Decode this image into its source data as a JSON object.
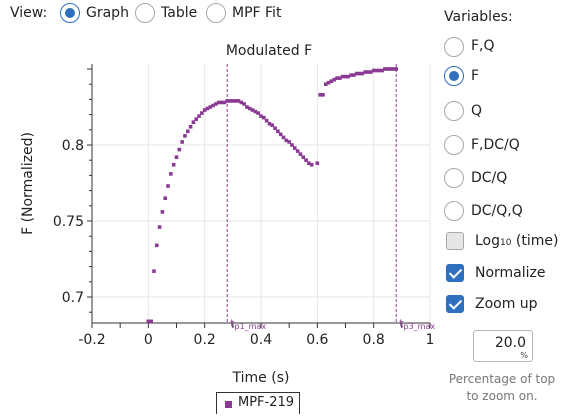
{
  "view": {
    "label": "View:",
    "options": [
      "Graph",
      "Table",
      "MPF Fit"
    ],
    "selected": "Graph"
  },
  "variables": {
    "label": "Variables:",
    "options": [
      "F,Q",
      "F",
      "Q",
      "F,DC/Q",
      "DC/Q",
      "DC/Q,Q"
    ],
    "selected": "F"
  },
  "checkboxes": {
    "log_time": {
      "prefix": "Log",
      "sub": "10",
      "suffix": " (time)",
      "checked": false
    },
    "normalize": {
      "label": "Normalize",
      "checked": true
    },
    "zoom_up": {
      "label": "Zoom up",
      "checked": true
    }
  },
  "zoom": {
    "value": "20.0",
    "unit": "%",
    "help": "Percentage of top to zoom on."
  },
  "colors": {
    "accent": "#2f6fc0",
    "series": "#8a3a94",
    "grid": "#e6e6e6"
  },
  "chart_data": {
    "type": "scatter",
    "title": "Modulated F",
    "xlabel": "Time (s)",
    "ylabel": "F (Normalized)",
    "xlim": [
      -0.2,
      1.0
    ],
    "ylim": [
      0.684,
      0.851
    ],
    "x_ticks": [
      "-0.2",
      "0",
      "0.2",
      "0.4",
      "0.6",
      "0.8",
      "1"
    ],
    "x_tick_values": [
      -0.2,
      0,
      0.2,
      0.4,
      0.6,
      0.8,
      1.0
    ],
    "y_ticks": [
      "0.7",
      "0.75",
      "0.8"
    ],
    "y_tick_values": [
      0.7,
      0.75,
      0.8
    ],
    "grid": true,
    "legend_position": "bottom-center",
    "annotations": [
      {
        "x": 0.28,
        "base": "t",
        "sub": "p1_max"
      },
      {
        "x": 0.88,
        "base": "t",
        "sub": "p3_max"
      }
    ],
    "series": [
      {
        "name": "MPF-219",
        "x": [
          0.0,
          0.005,
          0.01,
          0.02,
          0.03,
          0.04,
          0.05,
          0.06,
          0.07,
          0.08,
          0.09,
          0.1,
          0.11,
          0.12,
          0.13,
          0.14,
          0.15,
          0.16,
          0.17,
          0.18,
          0.19,
          0.2,
          0.21,
          0.22,
          0.23,
          0.24,
          0.25,
          0.26,
          0.27,
          0.28,
          0.29,
          0.3,
          0.31,
          0.32,
          0.33,
          0.34,
          0.35,
          0.36,
          0.37,
          0.38,
          0.39,
          0.4,
          0.41,
          0.42,
          0.43,
          0.44,
          0.45,
          0.46,
          0.47,
          0.48,
          0.49,
          0.5,
          0.51,
          0.52,
          0.53,
          0.54,
          0.55,
          0.56,
          0.57,
          0.58,
          0.6,
          0.61,
          0.62,
          0.63,
          0.64,
          0.65,
          0.66,
          0.67,
          0.68,
          0.69,
          0.7,
          0.71,
          0.72,
          0.73,
          0.74,
          0.75,
          0.76,
          0.77,
          0.78,
          0.79,
          0.8,
          0.81,
          0.82,
          0.83,
          0.84,
          0.85,
          0.86,
          0.87,
          0.88
        ],
        "y": [
          0.684,
          0.684,
          0.684,
          0.717,
          0.734,
          0.746,
          0.756,
          0.765,
          0.773,
          0.781,
          0.787,
          0.792,
          0.797,
          0.802,
          0.806,
          0.809,
          0.812,
          0.815,
          0.817,
          0.819,
          0.821,
          0.823,
          0.824,
          0.825,
          0.826,
          0.827,
          0.828,
          0.828,
          0.828,
          0.829,
          0.829,
          0.829,
          0.829,
          0.829,
          0.828,
          0.827,
          0.825,
          0.824,
          0.823,
          0.822,
          0.821,
          0.819,
          0.818,
          0.816,
          0.814,
          0.813,
          0.811,
          0.809,
          0.807,
          0.805,
          0.803,
          0.802,
          0.8,
          0.798,
          0.796,
          0.794,
          0.792,
          0.79,
          0.788,
          0.787,
          0.788,
          0.833,
          0.833,
          0.84,
          0.841,
          0.842,
          0.843,
          0.844,
          0.844,
          0.845,
          0.845,
          0.845,
          0.846,
          0.846,
          0.847,
          0.847,
          0.847,
          0.848,
          0.848,
          0.848,
          0.849,
          0.849,
          0.849,
          0.849,
          0.85,
          0.85,
          0.85,
          0.85,
          0.85
        ]
      }
    ]
  }
}
